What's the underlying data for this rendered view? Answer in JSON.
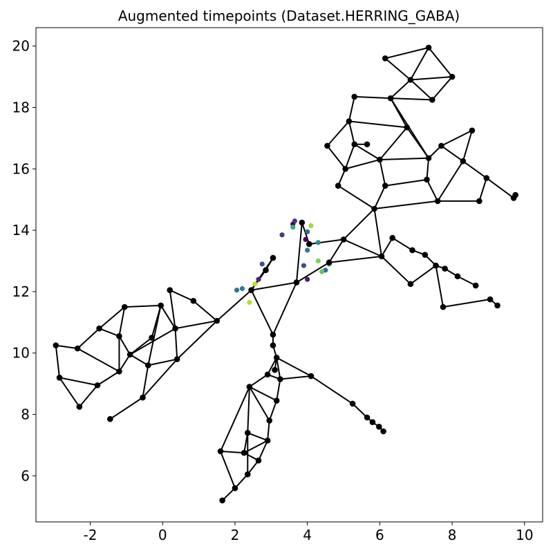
{
  "chart_data": {
    "type": "scatter",
    "title": "Augmented timepoints (Dataset.HERRING_GABA)",
    "xlabel": "",
    "ylabel": "",
    "xlim": [
      -3.5,
      10.5
    ],
    "ylim": [
      4.5,
      20.6
    ],
    "grid": false,
    "x_ticks": [
      -2,
      0,
      2,
      4,
      6,
      8,
      10
    ],
    "y_ticks": [
      6,
      8,
      10,
      12,
      14,
      16,
      18,
      20
    ],
    "x_tick_labels": [
      "-2",
      "0",
      "2",
      "4",
      "6",
      "8",
      "10"
    ],
    "y_tick_labels": [
      "6",
      "8",
      "10",
      "12",
      "14",
      "16",
      "18",
      "20"
    ],
    "graph_nodes": [
      [
        0.2,
        12.05
      ],
      [
        0.85,
        11.7
      ],
      [
        1.5,
        11.05
      ],
      [
        -0.05,
        11.55
      ],
      [
        -1.05,
        11.5
      ],
      [
        -1.75,
        10.8
      ],
      [
        -1.2,
        10.55
      ],
      [
        0.35,
        10.8
      ],
      [
        -0.3,
        10.5
      ],
      [
        -2.35,
        10.15
      ],
      [
        -2.95,
        10.25
      ],
      [
        -0.9,
        9.95
      ],
      [
        -0.4,
        9.6
      ],
      [
        0.4,
        9.8
      ],
      [
        -1.2,
        9.4
      ],
      [
        -2.85,
        9.2
      ],
      [
        -1.8,
        8.95
      ],
      [
        -0.55,
        8.55
      ],
      [
        -2.3,
        8.25
      ],
      [
        -1.45,
        7.85
      ],
      [
        2.45,
        12.05
      ],
      [
        3.7,
        12.3
      ],
      [
        3.05,
        13.1
      ],
      [
        2.85,
        12.7
      ],
      [
        3.05,
        10.6
      ],
      [
        3.05,
        10.25
      ],
      [
        3.15,
        9.85
      ],
      [
        3.1,
        9.45
      ],
      [
        2.9,
        9.3
      ],
      [
        3.25,
        9.15
      ],
      [
        4.1,
        9.25
      ],
      [
        2.4,
        8.9
      ],
      [
        3.15,
        8.45
      ],
      [
        2.95,
        7.8
      ],
      [
        2.35,
        7.4
      ],
      [
        2.9,
        7.15
      ],
      [
        2.25,
        6.75
      ],
      [
        2.65,
        6.5
      ],
      [
        1.6,
        6.8
      ],
      [
        2.35,
        6.05
      ],
      [
        2.0,
        5.6
      ],
      [
        1.65,
        5.2
      ],
      [
        5.25,
        8.35
      ],
      [
        5.65,
        7.9
      ],
      [
        5.8,
        7.75
      ],
      [
        5.98,
        7.6
      ],
      [
        6.1,
        7.45
      ],
      [
        3.85,
        14.25
      ],
      [
        4.05,
        13.55
      ],
      [
        4.6,
        12.95
      ],
      [
        5.0,
        13.7
      ],
      [
        6.05,
        13.15
      ],
      [
        6.35,
        13.75
      ],
      [
        6.9,
        13.35
      ],
      [
        7.25,
        13.2
      ],
      [
        7.55,
        12.85
      ],
      [
        6.85,
        12.25
      ],
      [
        7.75,
        11.5
      ],
      [
        7.8,
        12.75
      ],
      [
        8.15,
        12.5
      ],
      [
        8.65,
        12.2
      ],
      [
        9.05,
        11.75
      ],
      [
        9.25,
        11.55
      ],
      [
        5.85,
        14.7
      ],
      [
        4.85,
        15.45
      ],
      [
        6.15,
        15.45
      ],
      [
        7.6,
        14.95
      ],
      [
        8.75,
        14.95
      ],
      [
        7.3,
        15.65
      ],
      [
        8.95,
        15.7
      ],
      [
        9.7,
        15.05
      ],
      [
        9.75,
        15.15
      ],
      [
        5.05,
        16.0
      ],
      [
        5.3,
        16.8
      ],
      [
        4.55,
        16.75
      ],
      [
        5.65,
        16.8
      ],
      [
        6.0,
        16.3
      ],
      [
        7.35,
        16.35
      ],
      [
        7.7,
        16.75
      ],
      [
        8.3,
        16.25
      ],
      [
        5.15,
        17.55
      ],
      [
        6.75,
        17.35
      ],
      [
        8.55,
        17.25
      ],
      [
        5.3,
        18.35
      ],
      [
        6.3,
        18.3
      ],
      [
        7.45,
        18.25
      ],
      [
        6.85,
        18.9
      ],
      [
        8.0,
        19.0
      ],
      [
        6.15,
        19.6
      ],
      [
        7.35,
        19.95
      ]
    ],
    "graph_edges": [
      [
        0,
        1
      ],
      [
        1,
        2
      ],
      [
        0,
        7
      ],
      [
        2,
        7
      ],
      [
        2,
        13
      ],
      [
        3,
        7
      ],
      [
        3,
        4
      ],
      [
        3,
        8
      ],
      [
        3,
        12
      ],
      [
        4,
        5
      ],
      [
        4,
        6
      ],
      [
        5,
        6
      ],
      [
        5,
        9
      ],
      [
        6,
        11
      ],
      [
        7,
        13
      ],
      [
        7,
        11
      ],
      [
        8,
        11
      ],
      [
        11,
        12
      ],
      [
        11,
        14
      ],
      [
        12,
        13
      ],
      [
        12,
        17
      ],
      [
        6,
        14
      ],
      [
        9,
        10
      ],
      [
        9,
        14
      ],
      [
        10,
        15
      ],
      [
        15,
        18
      ],
      [
        15,
        16
      ],
      [
        16,
        14
      ],
      [
        18,
        16
      ],
      [
        17,
        19
      ],
      [
        13,
        17
      ],
      [
        2,
        20
      ],
      [
        20,
        21
      ],
      [
        20,
        22
      ],
      [
        20,
        24
      ],
      [
        21,
        24
      ],
      [
        21,
        47
      ],
      [
        21,
        49
      ],
      [
        20,
        23
      ],
      [
        23,
        22
      ],
      [
        24,
        25
      ],
      [
        25,
        26
      ],
      [
        26,
        27
      ],
      [
        26,
        28
      ],
      [
        26,
        29
      ],
      [
        28,
        29
      ],
      [
        29,
        30
      ],
      [
        26,
        30
      ],
      [
        28,
        31
      ],
      [
        30,
        42
      ],
      [
        42,
        43
      ],
      [
        43,
        44
      ],
      [
        44,
        45
      ],
      [
        45,
        46
      ],
      [
        31,
        32
      ],
      [
        32,
        29
      ],
      [
        31,
        33
      ],
      [
        33,
        32
      ],
      [
        31,
        34
      ],
      [
        31,
        38
      ],
      [
        34,
        35
      ],
      [
        33,
        35
      ],
      [
        34,
        36
      ],
      [
        35,
        36
      ],
      [
        35,
        37
      ],
      [
        36,
        37
      ],
      [
        36,
        38
      ],
      [
        37,
        39
      ],
      [
        38,
        40
      ],
      [
        39,
        40
      ],
      [
        40,
        41
      ],
      [
        34,
        39
      ],
      [
        47,
        48
      ],
      [
        48,
        50
      ],
      [
        49,
        50
      ],
      [
        49,
        51
      ],
      [
        50,
        63
      ],
      [
        50,
        51
      ],
      [
        51,
        52
      ],
      [
        51,
        63
      ],
      [
        52,
        53
      ],
      [
        53,
        54
      ],
      [
        54,
        55
      ],
      [
        55,
        56
      ],
      [
        55,
        57
      ],
      [
        57,
        61
      ],
      [
        61,
        62
      ],
      [
        51,
        56
      ],
      [
        55,
        58
      ],
      [
        58,
        59
      ],
      [
        59,
        60
      ],
      [
        63,
        64
      ],
      [
        63,
        65
      ],
      [
        63,
        66
      ],
      [
        64,
        72
      ],
      [
        65,
        76
      ],
      [
        65,
        68
      ],
      [
        66,
        67
      ],
      [
        66,
        68
      ],
      [
        66,
        79
      ],
      [
        67,
        69
      ],
      [
        69,
        70
      ],
      [
        70,
        71
      ],
      [
        69,
        79
      ],
      [
        68,
        77
      ],
      [
        72,
        76
      ],
      [
        72,
        73
      ],
      [
        72,
        74
      ],
      [
        74,
        80
      ],
      [
        73,
        75
      ],
      [
        73,
        76
      ],
      [
        76,
        81
      ],
      [
        80,
        81
      ],
      [
        80,
        83
      ],
      [
        83,
        84
      ],
      [
        84,
        81
      ],
      [
        81,
        77
      ],
      [
        76,
        77
      ],
      [
        77,
        78
      ],
      [
        78,
        79
      ],
      [
        79,
        82
      ],
      [
        78,
        82
      ],
      [
        77,
        84
      ],
      [
        84,
        85
      ],
      [
        84,
        86
      ],
      [
        85,
        86
      ],
      [
        86,
        87
      ],
      [
        87,
        85
      ],
      [
        86,
        88
      ],
      [
        88,
        89
      ],
      [
        89,
        86
      ],
      [
        89,
        87
      ],
      [
        80,
        73
      ]
    ],
    "colored_points": [
      {
        "x": 3.6,
        "y": 14.2,
        "color": "#440154"
      },
      {
        "x": 3.65,
        "y": 14.3,
        "color": "#46327e"
      },
      {
        "x": 3.6,
        "y": 14.1,
        "color": "#2ab07f"
      },
      {
        "x": 3.3,
        "y": 13.85,
        "color": "#443a83"
      },
      {
        "x": 4.1,
        "y": 14.15,
        "color": "#a0da39"
      },
      {
        "x": 4.0,
        "y": 13.95,
        "color": "#31688e"
      },
      {
        "x": 3.95,
        "y": 13.7,
        "color": "#440154"
      },
      {
        "x": 4.3,
        "y": 13.6,
        "color": "#21918c"
      },
      {
        "x": 4.0,
        "y": 13.35,
        "color": "#277f8e"
      },
      {
        "x": 4.3,
        "y": 13.0,
        "color": "#7ad151"
      },
      {
        "x": 3.9,
        "y": 12.85,
        "color": "#3b528b"
      },
      {
        "x": 4.5,
        "y": 12.7,
        "color": "#2c728e"
      },
      {
        "x": 4.4,
        "y": 12.65,
        "color": "#5ec962"
      },
      {
        "x": 4.0,
        "y": 12.4,
        "color": "#481f70"
      },
      {
        "x": 2.75,
        "y": 12.9,
        "color": "#3b528b"
      },
      {
        "x": 2.65,
        "y": 12.4,
        "color": "#482475"
      },
      {
        "x": 2.55,
        "y": 12.25,
        "color": "#bddf26"
      },
      {
        "x": 2.2,
        "y": 12.1,
        "color": "#26828e"
      },
      {
        "x": 2.05,
        "y": 12.05,
        "color": "#2a788e"
      },
      {
        "x": 2.4,
        "y": 11.65,
        "color": "#b5de2b"
      },
      {
        "x": 4.6,
        "y": 12.9,
        "color": "#1fa187"
      }
    ]
  }
}
